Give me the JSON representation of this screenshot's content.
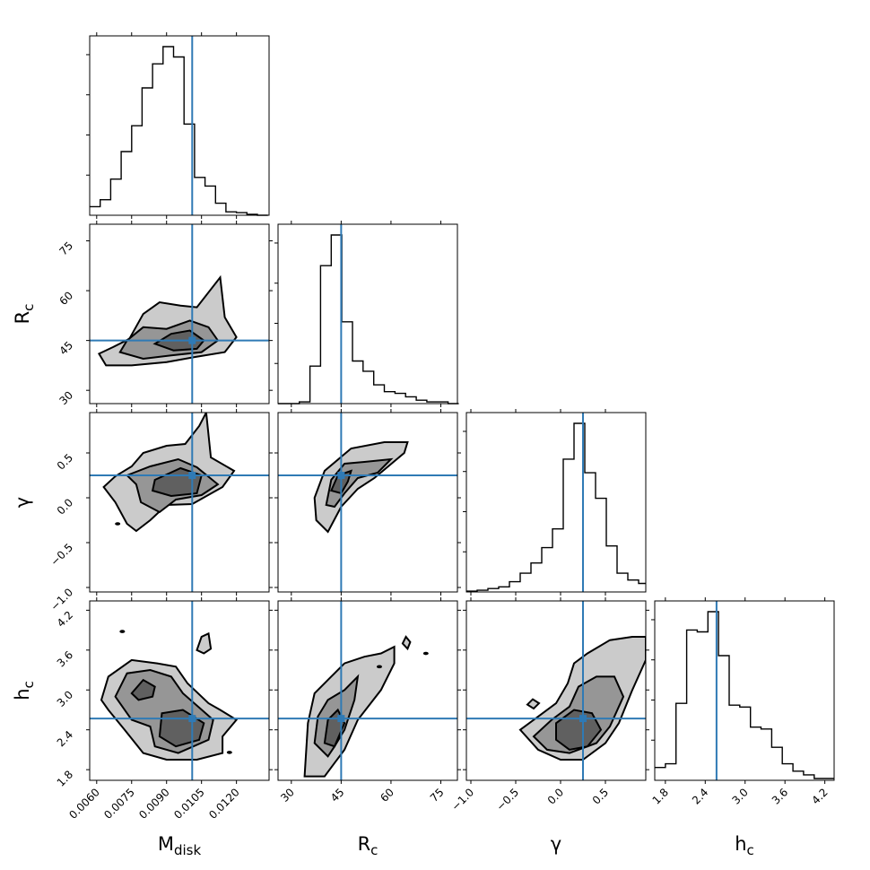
{
  "chart_data": {
    "type": "corner",
    "parameters": [
      {
        "key": "Mdisk",
        "main": "M",
        "sub": "disk",
        "range": [
          0.0057,
          0.0134
        ],
        "ticks": [
          0.006,
          0.0075,
          0.009,
          0.0105,
          0.012
        ],
        "tick_labels": [
          "0.0060",
          "0.0075",
          "0.0090",
          "0.0105",
          "0.0120"
        ],
        "truth": 0.0101
      },
      {
        "key": "Rc",
        "main": "R",
        "sub": "c",
        "range": [
          26,
          80
        ],
        "ticks": [
          30,
          45,
          60,
          75
        ],
        "tick_labels": [
          "30",
          "45",
          "60",
          "75"
        ],
        "truth": 45
      },
      {
        "key": "gamma",
        "main": "γ",
        "sub": "",
        "range": [
          -1.05,
          0.95
        ],
        "ticks": [
          -1.0,
          -0.5,
          0.0,
          0.5
        ],
        "tick_labels": [
          "−1.0",
          "−0.5",
          "0.0",
          "0.5"
        ],
        "truth": 0.25
      },
      {
        "key": "hc",
        "main": "h",
        "sub": "c",
        "range": [
          1.64,
          4.34
        ],
        "ticks": [
          1.8,
          2.4,
          3.0,
          3.6,
          4.2
        ],
        "tick_labels": [
          "1.8",
          "2.4",
          "3.0",
          "3.6",
          "4.2"
        ],
        "truth": 2.57
      }
    ],
    "histograms": [
      {
        "param": "Mdisk",
        "edges": [
          0.0057,
          0.00615,
          0.0066,
          0.00705,
          0.0075,
          0.00795,
          0.0084,
          0.00885,
          0.0093,
          0.00975,
          0.0102,
          0.01065,
          0.0111,
          0.01155,
          0.012,
          0.01245,
          0.0129,
          0.01335
        ],
        "counts": [
          0.05,
          0.09,
          0.21,
          0.37,
          0.52,
          0.74,
          0.88,
          0.98,
          0.92,
          0.53,
          0.22,
          0.17,
          0.07,
          0.02,
          0.015,
          0.005,
          0.0
        ]
      },
      {
        "param": "Rc",
        "edges": [
          26,
          29.2,
          32.4,
          35.6,
          38.8,
          42,
          45.2,
          48.4,
          51.6,
          54.8,
          58,
          61.2,
          64.4,
          67.6,
          70.8,
          74,
          77.2,
          80.4
        ],
        "counts": [
          0.0,
          0.0,
          0.01,
          0.22,
          0.81,
          0.99,
          0.48,
          0.25,
          0.19,
          0.11,
          0.07,
          0.06,
          0.04,
          0.02,
          0.01,
          0.01,
          0.0
        ]
      },
      {
        "param": "gamma",
        "edges": [
          -1.05,
          -0.93,
          -0.81,
          -0.69,
          -0.57,
          -0.45,
          -0.33,
          -0.21,
          -0.09,
          0.03,
          0.15,
          0.27,
          0.39,
          0.51,
          0.63,
          0.75,
          0.87,
          0.95
        ],
        "counts": [
          0.005,
          0.01,
          0.02,
          0.03,
          0.06,
          0.11,
          0.17,
          0.26,
          0.37,
          0.78,
          0.99,
          0.7,
          0.55,
          0.27,
          0.11,
          0.07,
          0.05
        ]
      },
      {
        "param": "hc",
        "edges": [
          1.64,
          1.8,
          1.96,
          2.12,
          2.28,
          2.44,
          2.6,
          2.76,
          2.92,
          3.08,
          3.24,
          3.4,
          3.56,
          3.72,
          3.88,
          4.04,
          4.2,
          4.34
        ],
        "counts": [
          0.07,
          0.09,
          0.42,
          0.82,
          0.81,
          0.92,
          0.68,
          0.41,
          0.4,
          0.29,
          0.28,
          0.18,
          0.09,
          0.05,
          0.03,
          0.01,
          0.01
        ]
      }
    ],
    "contour_levels": [
      "outer",
      "middle",
      "inner"
    ],
    "truth_values": {
      "Mdisk": 0.0101,
      "Rc": 45,
      "gamma": 0.25,
      "hc": 2.57
    },
    "panels": [
      {
        "x": "Mdisk",
        "y": "Rc",
        "contours": [
          [
            [
              0.0061,
              41
            ],
            [
              0.0067,
              43
            ],
            [
              0.0074,
              45.5
            ],
            [
              0.008,
              53
            ],
            [
              0.0087,
              56.5
            ],
            [
              0.0096,
              55.5
            ],
            [
              0.0103,
              55
            ],
            [
              0.0113,
              64
            ],
            [
              0.0115,
              52
            ],
            [
              0.012,
              46
            ],
            [
              0.0115,
              41.5
            ],
            [
              0.0102,
              40
            ],
            [
              0.009,
              38.5
            ],
            [
              0.0075,
              37.5
            ],
            [
              0.0064,
              37.5
            ]
          ],
          [
            [
              0.007,
              41.5
            ],
            [
              0.0073,
              45
            ],
            [
              0.008,
              49
            ],
            [
              0.009,
              48.5
            ],
            [
              0.01,
              51
            ],
            [
              0.0108,
              49
            ],
            [
              0.0112,
              45
            ],
            [
              0.0105,
              41.5
            ],
            [
              0.0092,
              40.5
            ],
            [
              0.008,
              39.5
            ]
          ],
          [
            [
              0.0085,
              44
            ],
            [
              0.0092,
              47
            ],
            [
              0.01,
              48
            ],
            [
              0.0106,
              45
            ],
            [
              0.0103,
              42.5
            ],
            [
              0.0093,
              42
            ]
          ]
        ],
        "blobs": []
      },
      {
        "x": "Mdisk",
        "y": "gamma",
        "contours": [
          [
            [
              0.0063,
              0.12
            ],
            [
              0.0068,
              0.24
            ],
            [
              0.0075,
              0.35
            ],
            [
              0.008,
              0.5
            ],
            [
              0.009,
              0.58
            ],
            [
              0.0098,
              0.6
            ],
            [
              0.0104,
              0.8
            ],
            [
              0.0107,
              0.95
            ],
            [
              0.0109,
              0.45
            ],
            [
              0.0119,
              0.3
            ],
            [
              0.0114,
              0.12
            ],
            [
              0.0101,
              -0.07
            ],
            [
              0.009,
              -0.08
            ],
            [
              0.0083,
              -0.25
            ],
            [
              0.0077,
              -0.37
            ],
            [
              0.0073,
              -0.29
            ],
            [
              0.0068,
              -0.05
            ]
          ],
          [
            [
              0.0073,
              0.25
            ],
            [
              0.0083,
              0.35
            ],
            [
              0.0095,
              0.43
            ],
            [
              0.0103,
              0.34
            ],
            [
              0.0112,
              0.15
            ],
            [
              0.0105,
              0.03
            ],
            [
              0.0094,
              -0.02
            ],
            [
              0.0087,
              -0.16
            ],
            [
              0.0079,
              -0.05
            ],
            [
              0.0077,
              0.15
            ]
          ],
          [
            [
              0.0085,
              0.2
            ],
            [
              0.0096,
              0.33
            ],
            [
              0.0105,
              0.25
            ],
            [
              0.0103,
              0.05
            ],
            [
              0.0092,
              0.02
            ],
            [
              0.0084,
              0.08
            ]
          ]
        ],
        "blobs": [
          [
            0.0069,
            -0.29
          ]
        ]
      },
      {
        "x": "Rc",
        "y": "gamma",
        "contours": [
          [
            [
              37.5,
              -0.25
            ],
            [
              37,
              0.0
            ],
            [
              40,
              0.3
            ],
            [
              48,
              0.55
            ],
            [
              58,
              0.62
            ],
            [
              65,
              0.62
            ],
            [
              64,
              0.5
            ],
            [
              55,
              0.22
            ],
            [
              50,
              0.1
            ],
            [
              45,
              -0.1
            ],
            [
              41,
              -0.38
            ]
          ],
          [
            [
              40.5,
              -0.08
            ],
            [
              42,
              0.2
            ],
            [
              46,
              0.38
            ],
            [
              52,
              0.4
            ],
            [
              60,
              0.43
            ],
            [
              56,
              0.28
            ],
            [
              50,
              0.22
            ],
            [
              46,
              0.05
            ],
            [
              43,
              -0.1
            ]
          ],
          [
            [
              42,
              0.08
            ],
            [
              44,
              0.25
            ],
            [
              48,
              0.3
            ],
            [
              47,
              0.18
            ],
            [
              45,
              0.05
            ]
          ]
        ],
        "blobs": []
      },
      {
        "x": "Mdisk",
        "y": "hc",
        "contours": [
          [
            [
              0.0062,
              2.85
            ],
            [
              0.0065,
              3.2
            ],
            [
              0.0075,
              3.45
            ],
            [
              0.0086,
              3.4
            ],
            [
              0.0094,
              3.35
            ],
            [
              0.0099,
              3.1
            ],
            [
              0.0108,
              2.8
            ],
            [
              0.0113,
              2.7
            ],
            [
              0.012,
              2.55
            ],
            [
              0.0114,
              2.3
            ],
            [
              0.0114,
              2.05
            ],
            [
              0.0103,
              1.95
            ],
            [
              0.009,
              1.95
            ],
            [
              0.008,
              2.05
            ],
            [
              0.0072,
              2.4
            ],
            [
              0.0065,
              2.7
            ]
          ],
          [
            [
              0.0068,
              2.9
            ],
            [
              0.0073,
              3.25
            ],
            [
              0.0083,
              3.3
            ],
            [
              0.0092,
              3.2
            ],
            [
              0.0097,
              2.95
            ],
            [
              0.011,
              2.55
            ],
            [
              0.0108,
              2.25
            ],
            [
              0.0095,
              2.05
            ],
            [
              0.0085,
              2.15
            ],
            [
              0.0083,
              2.45
            ],
            [
              0.0075,
              2.55
            ]
          ],
          [
            [
              0.0075,
              2.95
            ],
            [
              0.008,
              3.15
            ],
            [
              0.0085,
              3.05
            ],
            [
              0.0084,
              2.9
            ],
            [
              0.0078,
              2.85
            ]
          ],
          [
            [
              0.0087,
              2.3
            ],
            [
              0.0088,
              2.65
            ],
            [
              0.0097,
              2.7
            ],
            [
              0.0106,
              2.5
            ],
            [
              0.0104,
              2.25
            ],
            [
              0.0094,
              2.15
            ]
          ]
        ],
        "blobs": [
          [
            0.0071,
            3.88
          ],
          [
            0.0117,
            2.06
          ]
        ],
        "islands": [
          [
            [
              0.0103,
              3.6
            ],
            [
              0.0105,
              3.8
            ],
            [
              0.0108,
              3.85
            ],
            [
              0.0109,
              3.62
            ],
            [
              0.0106,
              3.55
            ]
          ]
        ]
      },
      {
        "x": "Rc",
        "y": "hc",
        "contours": [
          [
            [
              34,
              1.7
            ],
            [
              35,
              2.5
            ],
            [
              37,
              2.95
            ],
            [
              41,
              3.15
            ],
            [
              46,
              3.4
            ],
            [
              52,
              3.5
            ],
            [
              57,
              3.55
            ],
            [
              61,
              3.65
            ],
            [
              61,
              3.4
            ],
            [
              57,
              3.0
            ],
            [
              50,
              2.55
            ],
            [
              46,
              2.1
            ],
            [
              43,
              1.9
            ],
            [
              40,
              1.7
            ]
          ],
          [
            [
              37,
              2.2
            ],
            [
              38,
              2.6
            ],
            [
              41,
              2.85
            ],
            [
              46,
              3.0
            ],
            [
              50,
              3.2
            ],
            [
              49,
              2.85
            ],
            [
              46,
              2.4
            ],
            [
              43,
              2.15
            ],
            [
              41,
              2.0
            ]
          ],
          [
            [
              40,
              2.2
            ],
            [
              41,
              2.55
            ],
            [
              44,
              2.7
            ],
            [
              46,
              2.5
            ],
            [
              43,
              2.15
            ]
          ]
        ],
        "blobs": [
          [
            56.5,
            3.35
          ],
          [
            70.5,
            3.55
          ]
        ],
        "islands": [
          [
            [
              63.5,
              3.7
            ],
            [
              64.5,
              3.8
            ],
            [
              65.8,
              3.72
            ],
            [
              65,
              3.62
            ]
          ]
        ]
      },
      {
        "x": "gamma",
        "y": "hc",
        "contours": [
          [
            [
              -0.45,
              2.4
            ],
            [
              -0.25,
              2.6
            ],
            [
              -0.05,
              2.8
            ],
            [
              0.08,
              3.1
            ],
            [
              0.15,
              3.4
            ],
            [
              0.3,
              3.55
            ],
            [
              0.55,
              3.75
            ],
            [
              0.8,
              3.8
            ],
            [
              0.95,
              3.8
            ],
            [
              0.95,
              3.45
            ],
            [
              0.8,
              3.0
            ],
            [
              0.65,
              2.5
            ],
            [
              0.5,
              2.2
            ],
            [
              0.25,
              1.95
            ],
            [
              0.0,
              1.95
            ],
            [
              -0.25,
              2.1
            ]
          ],
          [
            [
              -0.3,
              2.3
            ],
            [
              -0.1,
              2.55
            ],
            [
              0.1,
              2.75
            ],
            [
              0.2,
              3.05
            ],
            [
              0.4,
              3.2
            ],
            [
              0.6,
              3.2
            ],
            [
              0.7,
              2.9
            ],
            [
              0.55,
              2.45
            ],
            [
              0.4,
              2.2
            ],
            [
              0.1,
              2.05
            ],
            [
              -0.15,
              2.1
            ]
          ],
          [
            [
              -0.05,
              2.25
            ],
            [
              -0.05,
              2.5
            ],
            [
              0.15,
              2.7
            ],
            [
              0.35,
              2.65
            ],
            [
              0.45,
              2.4
            ],
            [
              0.3,
              2.15
            ],
            [
              0.1,
              2.1
            ]
          ]
        ],
        "blobs": [],
        "islands": [
          [
            [
              -0.37,
              2.78
            ],
            [
              -0.31,
              2.86
            ],
            [
              -0.24,
              2.8
            ],
            [
              -0.3,
              2.72
            ]
          ]
        ]
      }
    ]
  }
}
